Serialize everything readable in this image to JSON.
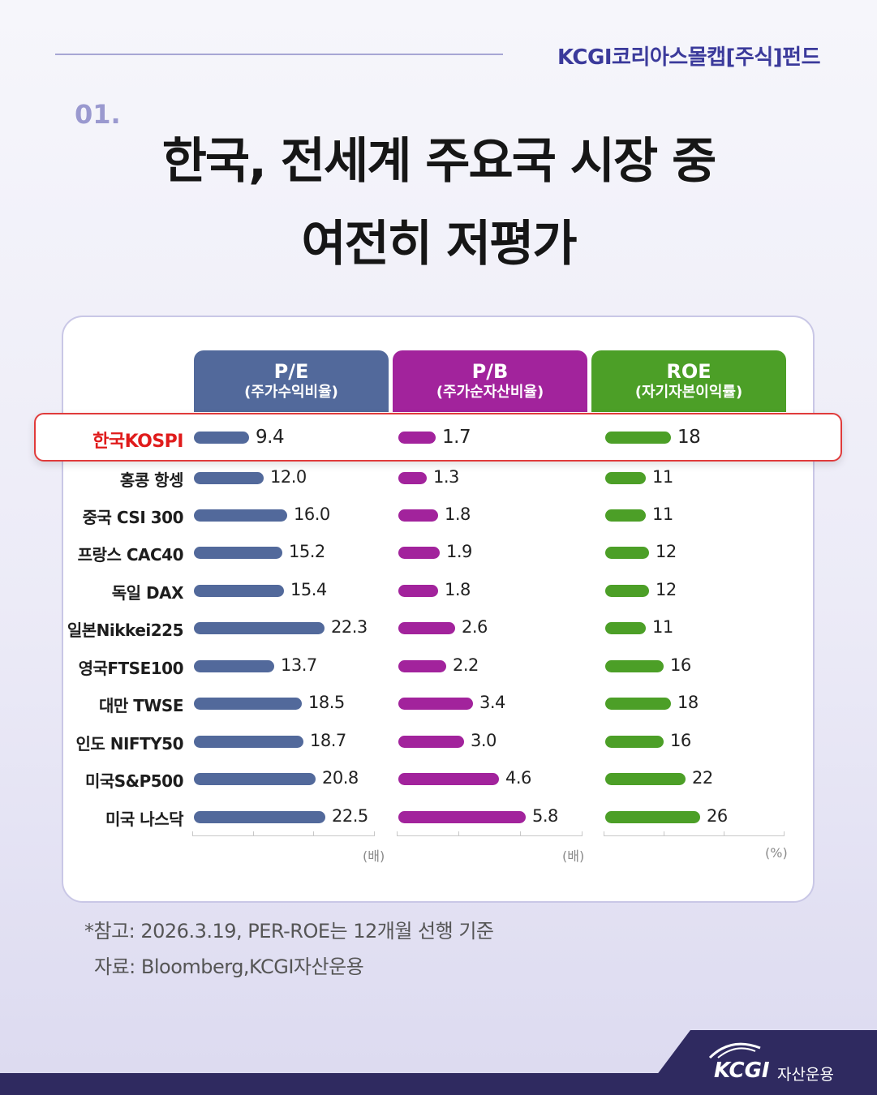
{
  "header": {
    "fund_name": "KCGI코리아스몰캡[주식]펀드"
  },
  "section_number": "01.",
  "title_line1": "한국, 전세계 주요국 시장 중",
  "title_line2": "여전히 저평가",
  "colors": {
    "pe": "#52699b",
    "pb": "#a2239c",
    "roe": "#4c9f27",
    "highlight": "#e01b1b"
  },
  "chart_data": {
    "type": "bar",
    "categories": [
      "한국KOSPI",
      "홍콩 항셍",
      "중국 CSI 300",
      "프랑스 CAC40",
      "독일 DAX",
      "일본Nikkei225",
      "영국FTSE100",
      "대만 TWSE",
      "인도 NIFTY50",
      "미국S&P500",
      "미국 나스닥"
    ],
    "highlighted_category": "한국KOSPI",
    "series": [
      {
        "name": "P/E",
        "subtitle": "(주가수익비율)",
        "unit": "(배)",
        "labels": [
          "9.4",
          "12.0",
          "16.0",
          "15.2",
          "15.4",
          "22.3",
          "13.7",
          "18.5",
          "18.7",
          "20.8",
          "22.5"
        ],
        "values": [
          9.4,
          12.0,
          16.0,
          15.2,
          15.4,
          22.3,
          13.7,
          18.5,
          18.7,
          20.8,
          22.5
        ]
      },
      {
        "name": "P/B",
        "subtitle": "(주가순자산비율)",
        "unit": "(배)",
        "labels": [
          "1.7",
          "1.3",
          "1.8",
          "1.9",
          "1.8",
          "2.6",
          "2.2",
          "3.4",
          "3.0",
          "4.6",
          "5.8"
        ],
        "values": [
          1.7,
          1.3,
          1.8,
          1.9,
          1.8,
          2.6,
          2.2,
          3.4,
          3.0,
          4.6,
          5.8
        ]
      },
      {
        "name": "ROE",
        "subtitle": "(자기자본이익률)",
        "unit": "(%)",
        "labels": [
          "18",
          "11",
          "11",
          "12",
          "12",
          "11",
          "16",
          "18",
          "16",
          "22",
          "26"
        ],
        "values": [
          18,
          11,
          11,
          12,
          12,
          11,
          16,
          18,
          16,
          22,
          26
        ]
      }
    ]
  },
  "notes": {
    "line1": "*참고: 2026.3.19, PER-ROE는 12개월 선행 기준",
    "line2": "자료: Bloomberg,KCGI자산운용"
  },
  "logo": {
    "brand": "KCGI",
    "sub": "자산운용"
  }
}
